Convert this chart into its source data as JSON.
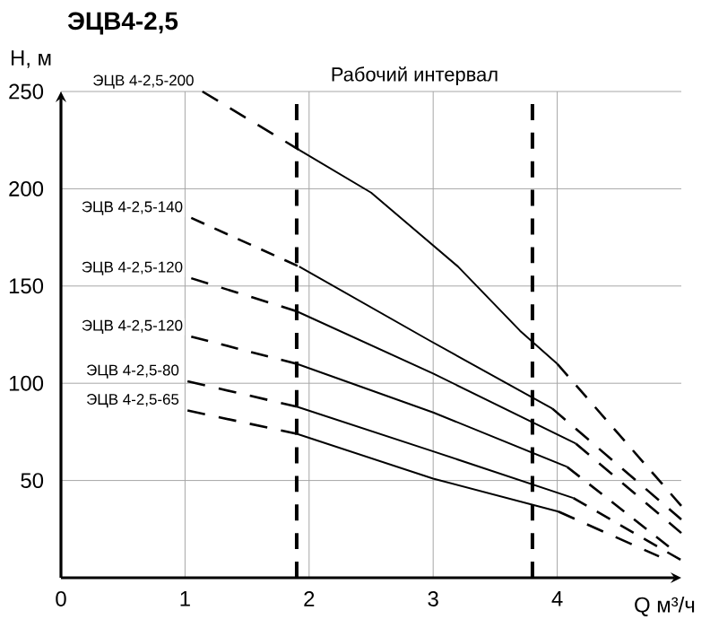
{
  "chart_data": {
    "type": "line",
    "title": "ЭЦВ4-2,5",
    "xlabel": "Q м³/ч",
    "ylabel": "H, м",
    "xlim": [
      0,
      5
    ],
    "ylim": [
      0,
      250
    ],
    "xticks": [
      0,
      1,
      2,
      3,
      4
    ],
    "yticks": [
      50,
      100,
      150,
      200,
      250
    ],
    "grid": true,
    "annotations": [
      "Рабочий интервал"
    ],
    "ref_lines": [
      {
        "axis": "x",
        "value": 1.9,
        "line_style": "dashed",
        "color": "#000000"
      },
      {
        "axis": "x",
        "value": 3.8,
        "line_style": "dashed",
        "color": "#000000"
      }
    ],
    "series": [
      {
        "name": "ЭЦВ 4-2,5-200",
        "color": "#000000",
        "line_style": "dashed",
        "x": [
          1.14,
          1.92
        ],
        "values": [
          250,
          220
        ]
      },
      {
        "color": "#000000",
        "line_style": "solid",
        "x": [
          1.92,
          2.5,
          3.2,
          3.7,
          4.0
        ],
        "values": [
          220,
          198,
          160,
          127,
          110
        ]
      },
      {
        "color": "#000000",
        "line_style": "dashed",
        "x": [
          4.0,
          5.0
        ],
        "values": [
          110,
          37
        ]
      },
      {
        "name": "ЭЦВ 4-2,5-140",
        "color": "#000000",
        "line_style": "dashed",
        "x": [
          1.05,
          1.92
        ],
        "values": [
          185,
          160
        ]
      },
      {
        "color": "#000000",
        "line_style": "solid",
        "x": [
          1.92,
          2.97,
          3.96
        ],
        "values": [
          160,
          122,
          87
        ]
      },
      {
        "color": "#000000",
        "line_style": "dashed",
        "x": [
          3.96,
          5.0
        ],
        "values": [
          87,
          30
        ]
      },
      {
        "name": "ЭЦВ 4-2,5-120",
        "color": "#000000",
        "line_style": "dashed",
        "x": [
          1.05,
          1.9
        ],
        "values": [
          154,
          137
        ]
      },
      {
        "color": "#000000",
        "line_style": "solid",
        "x": [
          1.9,
          3.0,
          4.15
        ],
        "values": [
          137,
          105,
          69
        ]
      },
      {
        "color": "#000000",
        "line_style": "dashed",
        "x": [
          4.15,
          5.0
        ],
        "values": [
          69,
          23
        ]
      },
      {
        "name": "ЭЦВ 4-2,5-120",
        "color": "#000000",
        "line_style": "dashed",
        "x": [
          1.05,
          1.9
        ],
        "values": [
          124,
          110
        ]
      },
      {
        "color": "#000000",
        "line_style": "solid",
        "x": [
          1.9,
          3.0,
          4.08
        ],
        "values": [
          110,
          85,
          57
        ]
      },
      {
        "color": "#000000",
        "line_style": "dashed",
        "x": [
          4.08,
          4.9
        ],
        "values": [
          57,
          16
        ]
      },
      {
        "name": "ЭЦВ 4-2,5-80",
        "color": "#000000",
        "line_style": "dashed",
        "x": [
          1.02,
          1.9
        ],
        "values": [
          101,
          88
        ]
      },
      {
        "color": "#000000",
        "line_style": "solid",
        "x": [
          1.9,
          3.0,
          4.13
        ],
        "values": [
          88,
          65,
          41
        ]
      },
      {
        "color": "#000000",
        "line_style": "dashed",
        "x": [
          4.13,
          5.0
        ],
        "values": [
          41,
          9
        ]
      },
      {
        "name": "ЭЦВ 4-2,5-65",
        "color": "#000000",
        "line_style": "dashed",
        "x": [
          1.02,
          1.9
        ],
        "values": [
          86,
          74
        ]
      },
      {
        "color": "#000000",
        "line_style": "solid",
        "x": [
          1.9,
          3.0,
          4.01
        ],
        "values": [
          74,
          51,
          34
        ]
      },
      {
        "color": "#000000",
        "line_style": "dashed",
        "x": [
          4.01,
          4.82
        ],
        "values": [
          34,
          11
        ]
      }
    ]
  }
}
